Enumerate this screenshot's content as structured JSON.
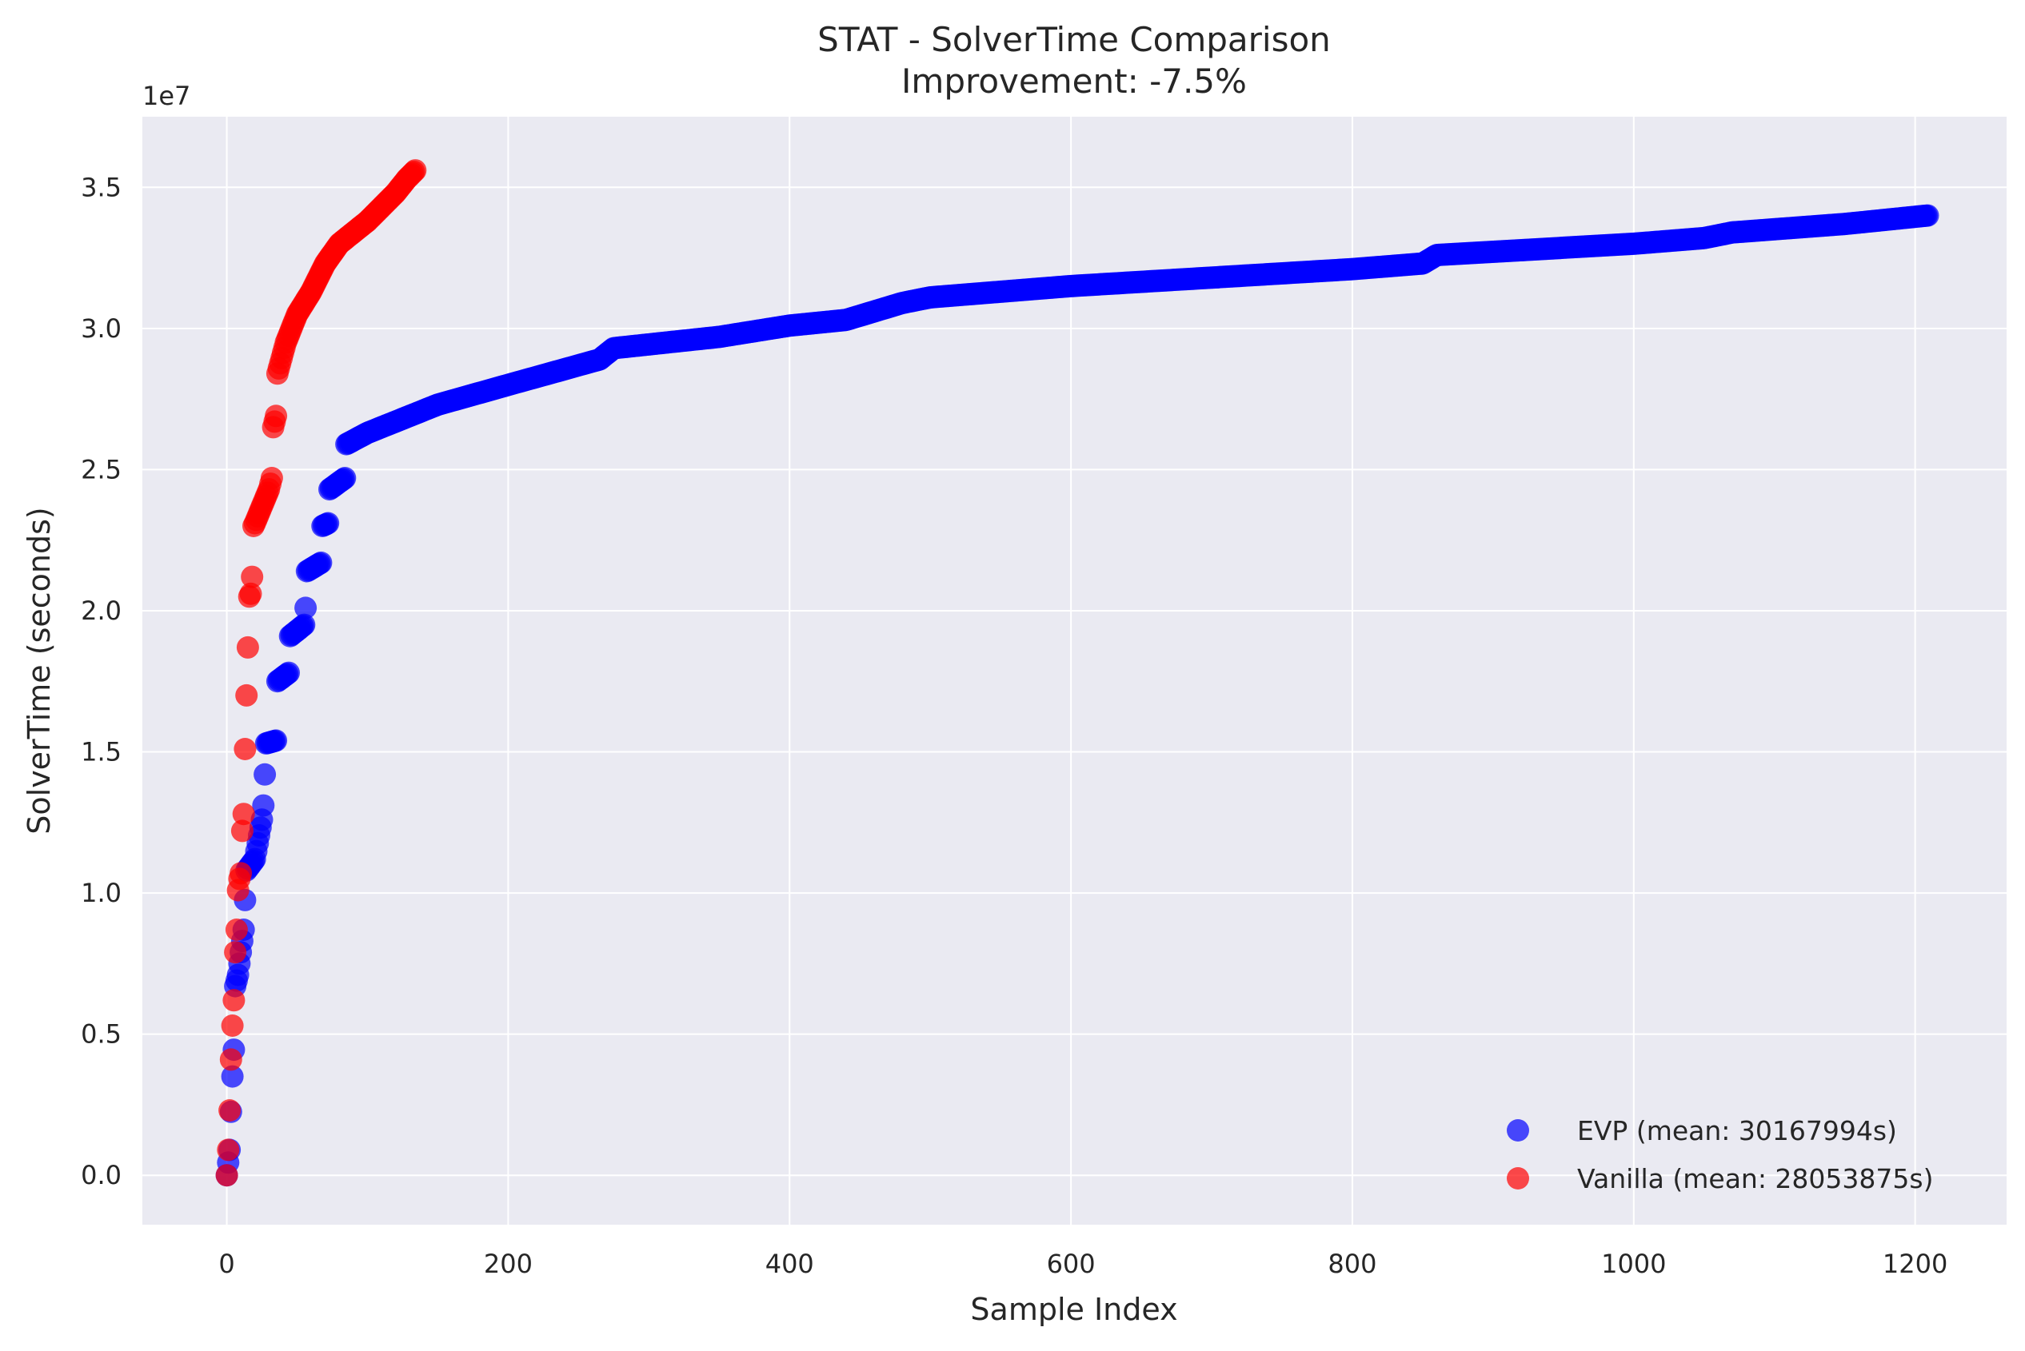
{
  "chart_data": {
    "type": "scatter",
    "title": "STAT - SolverTime Comparison",
    "subtitle": "Improvement: -7.5%",
    "xlabel": "Sample Index",
    "ylabel": "SolverTime (seconds)",
    "y_offset_label": "1e7",
    "y_scale": 10000000,
    "xlim": [
      -60,
      1265
    ],
    "ylim": [
      -1750000,
      37500000
    ],
    "x_ticks": [
      0,
      200,
      400,
      600,
      800,
      1000,
      1200
    ],
    "x_tick_labels": [
      "0",
      "200",
      "400",
      "600",
      "800",
      "1000",
      "1200"
    ],
    "y_ticks": [
      0,
      5000000,
      10000000,
      15000000,
      20000000,
      25000000,
      30000000,
      35000000
    ],
    "y_tick_labels": [
      "0.0",
      "0.5",
      "1.0",
      "1.5",
      "2.0",
      "2.5",
      "3.0",
      "3.5"
    ],
    "grid": true,
    "legend_position": "lower-right",
    "background_color": "#eaeaf2",
    "series": [
      {
        "name": "EVP (mean: 30167994s)",
        "color": "#0000ff",
        "n_points": 1210,
        "curve": [
          [
            0,
            0
          ],
          [
            1,
            450000
          ],
          [
            2,
            900000
          ],
          [
            3,
            2250000
          ],
          [
            4,
            3500000
          ],
          [
            5,
            4450000
          ],
          [
            6,
            6700000
          ],
          [
            8,
            7100000
          ],
          [
            10,
            7900000
          ],
          [
            12,
            8700000
          ],
          [
            14,
            10800000
          ],
          [
            20,
            11200000
          ],
          [
            25,
            12600000
          ],
          [
            26,
            13100000
          ],
          [
            28,
            15300000
          ],
          [
            35,
            15400000
          ],
          [
            36,
            17500000
          ],
          [
            44,
            17800000
          ],
          [
            45,
            19100000
          ],
          [
            55,
            19500000
          ],
          [
            56,
            20100000
          ],
          [
            57,
            21400000
          ],
          [
            67,
            21700000
          ],
          [
            68,
            23000000
          ],
          [
            72,
            23100000
          ],
          [
            73,
            24300000
          ],
          [
            84,
            24700000
          ],
          [
            85,
            25900000
          ],
          [
            100,
            26300000
          ],
          [
            150,
            27300000
          ],
          [
            200,
            28000000
          ],
          [
            265,
            28900000
          ],
          [
            275,
            29300000
          ],
          [
            350,
            29700000
          ],
          [
            400,
            30100000
          ],
          [
            440,
            30300000
          ],
          [
            480,
            30900000
          ],
          [
            500,
            31100000
          ],
          [
            600,
            31500000
          ],
          [
            700,
            31800000
          ],
          [
            800,
            32100000
          ],
          [
            850,
            32300000
          ],
          [
            860,
            32600000
          ],
          [
            1000,
            33000000
          ],
          [
            1050,
            33200000
          ],
          [
            1070,
            33400000
          ],
          [
            1150,
            33700000
          ],
          [
            1209,
            34000000
          ]
        ]
      },
      {
        "name": "Vanilla (mean: 28053875s)",
        "color": "#ff0000",
        "n_points": 135,
        "curve": [
          [
            0,
            0
          ],
          [
            1,
            900000
          ],
          [
            2,
            2300000
          ],
          [
            3,
            4100000
          ],
          [
            4,
            5300000
          ],
          [
            5,
            6200000
          ],
          [
            6,
            7900000
          ],
          [
            7,
            8700000
          ],
          [
            8,
            10100000
          ],
          [
            9,
            10500000
          ],
          [
            10,
            10700000
          ],
          [
            11,
            12200000
          ],
          [
            12,
            12800000
          ],
          [
            13,
            15100000
          ],
          [
            14,
            17000000
          ],
          [
            15,
            18700000
          ],
          [
            16,
            20500000
          ],
          [
            17,
            20600000
          ],
          [
            18,
            21200000
          ],
          [
            19,
            23000000
          ],
          [
            20,
            23100000
          ],
          [
            30,
            24300000
          ],
          [
            32,
            24700000
          ],
          [
            33,
            26500000
          ],
          [
            35,
            26900000
          ],
          [
            36,
            28400000
          ],
          [
            42,
            29500000
          ],
          [
            50,
            30500000
          ],
          [
            60,
            31300000
          ],
          [
            70,
            32300000
          ],
          [
            80,
            33000000
          ],
          [
            90,
            33400000
          ],
          [
            100,
            33800000
          ],
          [
            110,
            34300000
          ],
          [
            120,
            34800000
          ],
          [
            128,
            35300000
          ],
          [
            134,
            35600000
          ]
        ]
      }
    ]
  }
}
